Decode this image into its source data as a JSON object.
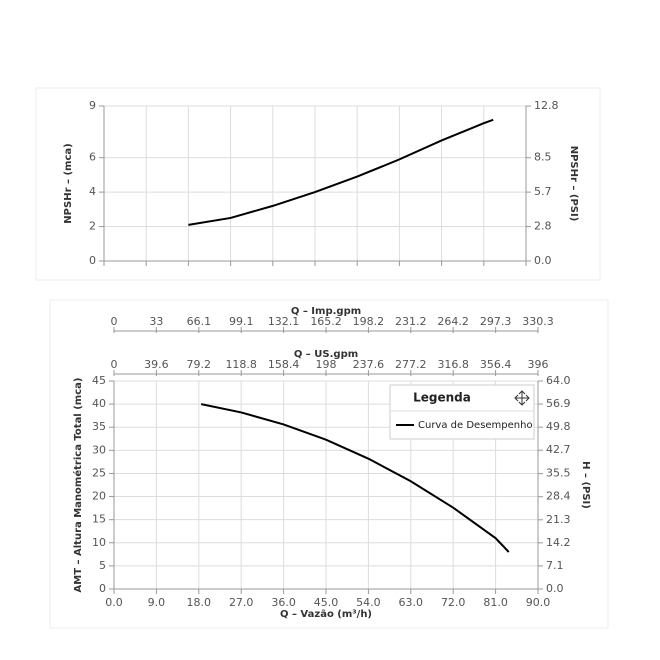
{
  "chart_data": [
    {
      "type": "line",
      "ylabel": "NPSHr – (mca)",
      "y2label": "NPSHr – (PSI)",
      "xlim": [
        0,
        90
      ],
      "xticks": [
        0,
        9,
        18,
        27,
        36,
        45,
        54,
        63,
        72,
        81,
        90
      ],
      "xtick_labels": false,
      "ylim": [
        0,
        9
      ],
      "yticks": [
        0,
        2,
        4,
        6,
        9
      ],
      "y2lim": [
        0,
        12.8
      ],
      "y2ticks": [
        {
          "value": 0,
          "label": "0.0"
        },
        {
          "value": 2.84,
          "label": "2.8"
        },
        {
          "value": 5.69,
          "label": "5.7"
        },
        {
          "value": 8.53,
          "label": "8.5"
        },
        12.8
      ],
      "grid": true,
      "x": [
        18,
        27,
        36,
        45,
        54,
        63,
        72,
        81,
        83
      ],
      "series": [
        {
          "color": "#000000",
          "values": [
            2.1,
            2.5,
            3.2,
            4.0,
            4.9,
            5.9,
            7.0,
            8.0,
            8.2
          ]
        }
      ]
    },
    {
      "type": "line",
      "xlabel": "Q – Vazão (m³/h)",
      "ylabel": "AMT – Altura Manométrica Total (mca)",
      "y2label": "H – (PSI)",
      "xlim": [
        0,
        90
      ],
      "xticks": [
        {
          "value": 0,
          "label": "0.0"
        },
        {
          "value": 9,
          "label": "9.0"
        },
        {
          "value": 18,
          "label": "18.0"
        },
        {
          "value": 27,
          "label": "27.0"
        },
        {
          "value": 36,
          "label": "36.0"
        },
        {
          "value": 45,
          "label": "45.0"
        },
        {
          "value": 54,
          "label": "54.0"
        },
        {
          "value": 63,
          "label": "63.0"
        },
        {
          "value": 72,
          "label": "72.0"
        },
        {
          "value": 81,
          "label": "81.0"
        },
        {
          "value": 90,
          "label": "90.0"
        }
      ],
      "x2label": "Q – US.gpm",
      "x2lim": [
        0,
        396
      ],
      "x2ticks": [
        0,
        39.6,
        79.2,
        118.8,
        158.4,
        198,
        237.6,
        277.2,
        316.8,
        356.4,
        396
      ],
      "x3label": "Q – Imp.gpm",
      "x3lim": [
        0,
        330.3
      ],
      "x3ticks": [
        0,
        33,
        66.1,
        99.1,
        132.1,
        165.2,
        198.2,
        231.2,
        264.2,
        297.3,
        330.3
      ],
      "ylim": [
        0,
        45
      ],
      "yticks": [
        0,
        5,
        10,
        15,
        20,
        25,
        30,
        35,
        40,
        45
      ],
      "y2lim": [
        0,
        64
      ],
      "y2ticks": [
        {
          "value": 0,
          "label": "0.0"
        },
        7.1,
        14.2,
        21.3,
        28.4,
        35.5,
        42.7,
        49.8,
        56.9,
        {
          "value": 64,
          "label": "64.0"
        }
      ],
      "grid": true,
      "legend_title": "Legenda",
      "legend": "top-right",
      "x": [
        18.5,
        27,
        36,
        45,
        54,
        63,
        72,
        81,
        83.8
      ],
      "series": [
        {
          "name": "Curva de Desempenho",
          "color": "#000000",
          "values": [
            40.0,
            38.2,
            35.6,
            32.3,
            28.2,
            23.3,
            17.6,
            11.0,
            8.0
          ]
        }
      ]
    }
  ]
}
